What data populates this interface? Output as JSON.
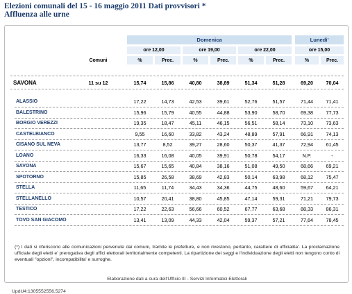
{
  "title_line1": "Elezioni comunali del 15 - 16 maggio 2011 Dati provvisori *",
  "title_line2": "Affluenza alle urne",
  "header": {
    "domenica": "Domenica",
    "lunedi": "Lunedi'",
    "comuni": "Comuni",
    "ore12": "ore 12,00",
    "ore19": "ore 19,00",
    "ore22": "ore 22,00",
    "ore15": "ore 15,00",
    "pct": "%",
    "prec": "Prec."
  },
  "summary": {
    "name": "SAVONA",
    "comuni": "11 su 12",
    "values": [
      "15,74",
      "15,86",
      "40,80",
      "38,89",
      "51,34",
      "51,28",
      "69,20",
      "70,04"
    ]
  },
  "rows": [
    {
      "name": "ALASSIO",
      "values": [
        "17,22",
        "14,73",
        "42,53",
        "39,61",
        "52,76",
        "51,57",
        "71,44",
        "71,41"
      ]
    },
    {
      "name": "BALESTRINO",
      "values": [
        "15,96",
        "15,79",
        "40,55",
        "44,88",
        "53,90",
        "58,70",
        "69,38",
        "77,73"
      ]
    },
    {
      "name": "BORGIO VEREZZI",
      "values": [
        "19,35",
        "18,47",
        "45,11",
        "46,15",
        "56,51",
        "58,14",
        "73,10",
        "73,63"
      ]
    },
    {
      "name": "CASTELBIANCO",
      "values": [
        "9,55",
        "16,60",
        "33,82",
        "43,24",
        "48,89",
        "57,91",
        "66,91",
        "74,13"
      ]
    },
    {
      "name": "CISANO SUL NEVA",
      "values": [
        "13,77",
        "8,52",
        "39,27",
        "28,60",
        "50,37",
        "41,37",
        "72,94",
        "61,45"
      ]
    },
    {
      "name": "LOANO",
      "values": [
        "16,33",
        "16,08",
        "40,05",
        "39,91",
        "50,78",
        "54,17",
        "N.P.",
        "-"
      ]
    },
    {
      "name": "SAVONA",
      "values": [
        "15,67",
        "15,65",
        "40,84",
        "38,16",
        "51,08",
        "49,50",
        "68,66",
        "69,21"
      ]
    },
    {
      "name": "SPOTORNO",
      "values": [
        "15,85",
        "26,58",
        "38,69",
        "42,83",
        "50,14",
        "63,98",
        "68,12",
        "75,47"
      ]
    },
    {
      "name": "STELLA",
      "values": [
        "11,65",
        "11,74",
        "34,43",
        "34,36",
        "44,75",
        "48,60",
        "59,67",
        "64,21"
      ]
    },
    {
      "name": "STELLANELLO",
      "values": [
        "10,57",
        "20,41",
        "38,80",
        "45,85",
        "47,14",
        "59,31",
        "71,21",
        "79,73"
      ]
    },
    {
      "name": "TESTICO",
      "values": [
        "17,22",
        "22,63",
        "56,66",
        "60,52",
        "67,77",
        "63,68",
        "88,33",
        "86,31"
      ]
    },
    {
      "name": "TOVO SAN GIACOMO",
      "values": [
        "13,41",
        "13,09",
        "44,33",
        "42,04",
        "59,37",
        "57,21",
        "77,64",
        "78,45"
      ]
    }
  ],
  "note": "(*) I dati si riferiscono alle comunicazioni pervenute dai comuni, tramite le prefetture, e non rivestono, pertanto, carattere di ufficialita'. La proclamazione ufficiale degli eletti e' prerogativa degli uffici elettorali territorialmente competenti. La ripartizione dei seggi e l'individuazione degli eletti non tengono conto di eventuali \"opzioni\", incompatibilita' e surroghe.",
  "footer": "Elaborazione dati a cura dell'Ufficio III - Servizi Informatici Elettorali",
  "upd": "UpdU4:1305552556.5274"
}
